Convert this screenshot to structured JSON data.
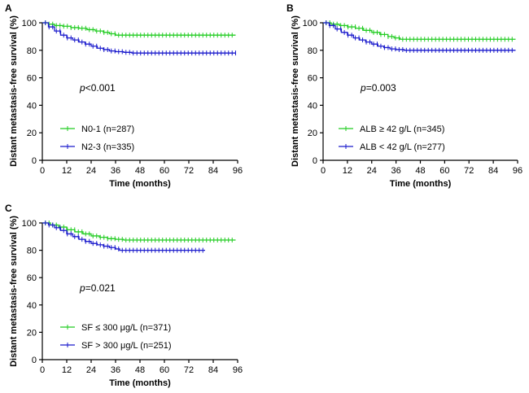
{
  "chart_data": [
    {
      "panel_label": "A",
      "type": "line",
      "subtype": "kaplan-meier",
      "ylabel": "Distant metastasis-free survival (%)",
      "xlabel": "Time (months)",
      "xlim": [
        0,
        96
      ],
      "ylim": [
        0,
        100
      ],
      "xticks": [
        "0",
        "12",
        "24",
        "36",
        "48",
        "60",
        "72",
        "84",
        "96"
      ],
      "yticks": [
        "0",
        "20",
        "40",
        "60",
        "80",
        "100"
      ],
      "p_italic": "p",
      "p_rest": "<0.001",
      "series": [
        {
          "name": "N0-1 (n=287)",
          "color": "#22cc22",
          "points": [
            [
              0,
              100
            ],
            [
              3,
              99
            ],
            [
              6,
              98
            ],
            [
              10,
              97.5
            ],
            [
              14,
              96.5
            ],
            [
              18,
              96
            ],
            [
              22,
              95
            ],
            [
              26,
              94
            ],
            [
              30,
              93
            ],
            [
              33,
              92
            ],
            [
              36,
              91
            ],
            [
              95,
              91
            ]
          ]
        },
        {
          "name": "N2-3 (n=335)",
          "color": "#1a1acc",
          "points": [
            [
              0,
              100
            ],
            [
              3,
              97
            ],
            [
              6,
              94
            ],
            [
              9,
              91
            ],
            [
              12,
              89
            ],
            [
              15,
              87.5
            ],
            [
              18,
              86
            ],
            [
              21,
              84.5
            ],
            [
              24,
              83
            ],
            [
              27,
              81.5
            ],
            [
              30,
              80.5
            ],
            [
              33,
              79.5
            ],
            [
              36,
              79
            ],
            [
              40,
              78.5
            ],
            [
              44,
              78
            ],
            [
              95,
              78
            ]
          ]
        }
      ]
    },
    {
      "panel_label": "B",
      "type": "line",
      "subtype": "kaplan-meier",
      "ylabel": "Distant metastasis-free survival (%)",
      "xlabel": "Time (months)",
      "xlim": [
        0,
        96
      ],
      "ylim": [
        0,
        100
      ],
      "xticks": [
        "0",
        "12",
        "24",
        "36",
        "48",
        "60",
        "72",
        "84",
        "96"
      ],
      "yticks": [
        "0",
        "20",
        "40",
        "60",
        "80",
        "100"
      ],
      "p_italic": "p",
      "p_rest": "=0.003",
      "series": [
        {
          "name": "ALB ≥  42 g/L (n=345)",
          "color": "#22cc22",
          "points": [
            [
              0,
              100
            ],
            [
              4,
              99
            ],
            [
              8,
              98
            ],
            [
              12,
              97
            ],
            [
              16,
              96
            ],
            [
              20,
              94.5
            ],
            [
              24,
              93
            ],
            [
              28,
              91.5
            ],
            [
              32,
              90
            ],
            [
              35,
              89
            ],
            [
              38,
              88
            ],
            [
              95,
              88
            ]
          ]
        },
        {
          "name": "ALB < 42 g/L (n=277)",
          "color": "#1a1acc",
          "points": [
            [
              0,
              100
            ],
            [
              3,
              98
            ],
            [
              6,
              95.5
            ],
            [
              9,
              93
            ],
            [
              12,
              91
            ],
            [
              15,
              89
            ],
            [
              18,
              87.5
            ],
            [
              21,
              86
            ],
            [
              24,
              84.5
            ],
            [
              27,
              83
            ],
            [
              30,
              82
            ],
            [
              33,
              81
            ],
            [
              36,
              80.5
            ],
            [
              40,
              80
            ],
            [
              95,
              80
            ]
          ]
        }
      ]
    },
    {
      "panel_label": "C",
      "type": "line",
      "subtype": "kaplan-meier",
      "ylabel": "Distant metastasis-free survival (%)",
      "xlabel": "Time (months)",
      "xlim": [
        0,
        96
      ],
      "ylim": [
        0,
        100
      ],
      "xticks": [
        "0",
        "12",
        "24",
        "36",
        "48",
        "60",
        "72",
        "84",
        "96"
      ],
      "yticks": [
        "0",
        "20",
        "40",
        "60",
        "80",
        "100"
      ],
      "p_italic": "p",
      "p_rest": "=0.021",
      "series": [
        {
          "name": "SF ≤  300 μg/L (n=371)",
          "color": "#22cc22",
          "points": [
            [
              0,
              100
            ],
            [
              4,
              98.5
            ],
            [
              8,
              97
            ],
            [
              12,
              95
            ],
            [
              16,
              93.5
            ],
            [
              20,
              92
            ],
            [
              24,
              90.5
            ],
            [
              28,
              89.5
            ],
            [
              32,
              88.5
            ],
            [
              36,
              88
            ],
            [
              40,
              87.5
            ],
            [
              95,
              87.5
            ]
          ]
        },
        {
          "name": "SF > 300 μg/L (n=251)",
          "color": "#1a1acc",
          "points": [
            [
              0,
              100
            ],
            [
              3,
              98.5
            ],
            [
              6,
              96.5
            ],
            [
              9,
              94.5
            ],
            [
              12,
              92
            ],
            [
              15,
              90
            ],
            [
              18,
              88
            ],
            [
              21,
              86.5
            ],
            [
              24,
              85
            ],
            [
              27,
              84
            ],
            [
              30,
              83
            ],
            [
              33,
              82
            ],
            [
              36,
              81
            ],
            [
              38,
              80
            ],
            [
              80,
              80
            ]
          ]
        }
      ]
    }
  ]
}
